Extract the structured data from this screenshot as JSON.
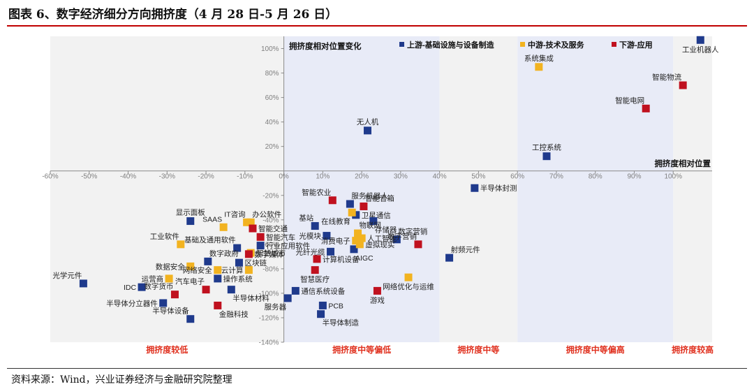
{
  "figure": {
    "title": "图表 6、数字经济细分方向拥挤度（4 月 28 日-5 月 26 日）",
    "source": "资料来源：Wind，兴业证券经济与金融研究院整理"
  },
  "colors": {
    "upstream": "#1f3a8c",
    "midstream": "#f2b320",
    "downstream": "#c0111f",
    "zone_gray": "#f2f2f2",
    "zone_blue": "#e8ebf7",
    "zone_label": "#e0301e"
  },
  "chart_data": {
    "type": "scatter",
    "xlim": [
      -0.6,
      1.1
    ],
    "ylim": [
      -1.4,
      1.1
    ],
    "x_ticks": [
      -0.6,
      -0.5,
      -0.4,
      -0.3,
      -0.2,
      -0.1,
      0,
      0.1,
      0.2,
      0.3,
      0.4,
      0.5,
      0.6,
      0.7,
      0.8,
      0.9,
      1.0
    ],
    "x_tick_labels": [
      "-60%",
      "-50%",
      "-40%",
      "-30%",
      "-20%",
      "-10%",
      "0%",
      "10%",
      "20%",
      "30%",
      "40%",
      "50%",
      "60%",
      "70%",
      "80%",
      "90%",
      "100%"
    ],
    "y_ticks": [
      -1.4,
      -1.2,
      -1.0,
      -0.8,
      -0.6,
      -0.4,
      -0.2,
      0.2,
      0.4,
      0.6,
      0.8,
      1.0
    ],
    "y_tick_labels": [
      "-140%",
      "-120%",
      "-100%",
      "-80%",
      "-60%",
      "-40%",
      "-20%",
      "20%",
      "40%",
      "60%",
      "80%",
      "100%"
    ],
    "grid": false,
    "legend": {
      "placement": "top",
      "title": "拥挤度相对位置变化",
      "entries": [
        {
          "key": "upstream",
          "label": "上游-基础设施与设备制造"
        },
        {
          "key": "midstream",
          "label": "中游-技术及服务"
        },
        {
          "key": "downstream",
          "label": "下游-应用"
        }
      ]
    },
    "x_axis_annotation": "拥挤度相对位置",
    "zones": [
      {
        "from": -0.6,
        "to": 0.0,
        "shade": "gray",
        "label": "拥挤度较低"
      },
      {
        "from": 0.0,
        "to": 0.4,
        "shade": "blue",
        "label": "拥挤度中等偏低"
      },
      {
        "from": 0.4,
        "to": 0.6,
        "shade": "gray",
        "label": "拥挤度中等"
      },
      {
        "from": 0.6,
        "to": 1.0,
        "shade": "blue",
        "label": "拥挤度中等偏高"
      },
      {
        "from": 1.0,
        "to": 1.1,
        "shade": "gray",
        "label": "拥挤度较高"
      }
    ],
    "series": [
      {
        "key": "upstream",
        "name": "上游-基础设施与设备制造",
        "points": [
          {
            "label": "工业机器人",
            "x": 1.07,
            "y": 1.07,
            "anchor": "below"
          },
          {
            "label": "工控系统",
            "x": 0.675,
            "y": 0.12,
            "anchor": "above"
          },
          {
            "label": "无人机",
            "x": 0.215,
            "y": 0.33,
            "anchor": "above"
          },
          {
            "label": "半导体封测",
            "x": 0.49,
            "y": -0.14,
            "anchor": "right"
          },
          {
            "label": "服务机器人",
            "x": 0.17,
            "y": -0.27,
            "anchor": "above-right"
          },
          {
            "label": "卫星通信",
            "x": 0.185,
            "y": -0.36,
            "anchor": "right"
          },
          {
            "label": "基站",
            "x": 0.08,
            "y": -0.45,
            "anchor": "above-left"
          },
          {
            "label": "光模块",
            "x": 0.11,
            "y": -0.53,
            "anchor": "left"
          },
          {
            "label": "存储器",
            "x": 0.23,
            "y": -0.41,
            "anchor": "below-right"
          },
          {
            "label": "数字营销",
            "x": 0.29,
            "y": -0.56,
            "anchor": "above-right"
          },
          {
            "label": "AIGC",
            "x": 0.18,
            "y": -0.64,
            "anchor": "below-right"
          },
          {
            "label": "光纤光缆",
            "x": 0.12,
            "y": -0.66,
            "anchor": "left"
          },
          {
            "label": "射频元件",
            "x": 0.425,
            "y": -0.71,
            "anchor": "above-right"
          },
          {
            "label": "通信系统设备",
            "x": 0.03,
            "y": -0.98,
            "anchor": "right"
          },
          {
            "label": "PCB",
            "x": 0.1,
            "y": -1.1,
            "anchor": "right"
          },
          {
            "label": "服务器",
            "x": 0.01,
            "y": -1.04,
            "anchor": "below-left"
          },
          {
            "label": "半导体制造",
            "x": 0.095,
            "y": -1.17,
            "anchor": "below-right"
          },
          {
            "label": "显示面板",
            "x": -0.24,
            "y": -0.41,
            "anchor": "above"
          },
          {
            "label": "基础及通用软件",
            "x": -0.12,
            "y": -0.63,
            "anchor": "above-left"
          },
          {
            "label": "行业应用软件",
            "x": -0.06,
            "y": -0.61,
            "anchor": "right"
          },
          {
            "label": "数字政府",
            "x": -0.195,
            "y": -0.74,
            "anchor": "above-right"
          },
          {
            "label": "区块链",
            "x": -0.115,
            "y": -0.75,
            "anchor": "right"
          },
          {
            "label": "操作系统",
            "x": -0.17,
            "y": -0.88,
            "anchor": "right"
          },
          {
            "label": "光学元件",
            "x": -0.515,
            "y": -0.92,
            "anchor": "above-left"
          },
          {
            "label": "IDC",
            "x": -0.365,
            "y": -0.95,
            "anchor": "left"
          },
          {
            "label": "半导体材料",
            "x": -0.135,
            "y": -0.97,
            "anchor": "below-right"
          },
          {
            "label": "半导体分立器件",
            "x": -0.31,
            "y": -1.08,
            "anchor": "left"
          },
          {
            "label": "半导体设备",
            "x": -0.24,
            "y": -1.21,
            "anchor": "above-left"
          }
        ]
      },
      {
        "key": "midstream",
        "name": "中游-技术及服务",
        "points": [
          {
            "label": "系统集成",
            "x": 0.655,
            "y": 0.85,
            "anchor": "above"
          },
          {
            "label": "在线教育",
            "x": 0.175,
            "y": -0.34,
            "anchor": "below-left"
          },
          {
            "label": "物联网",
            "x": 0.19,
            "y": -0.51,
            "anchor": "above-right"
          },
          {
            "label": "人工智能",
            "x": 0.2,
            "y": -0.55,
            "anchor": "right"
          },
          {
            "label": "虚拟现实",
            "x": 0.195,
            "y": -0.6,
            "anchor": "right"
          },
          {
            "label": "消费电子",
            "x": 0.185,
            "y": -0.57,
            "anchor": "left"
          },
          {
            "label": "网络优化与运维",
            "x": 0.32,
            "y": -0.87,
            "anchor": "below"
          },
          {
            "label": "SAAS",
            "x": -0.155,
            "y": -0.46,
            "anchor": "above-left"
          },
          {
            "label": "IT咨询",
            "x": -0.095,
            "y": -0.42,
            "anchor": "above-left"
          },
          {
            "label": "办公软件",
            "x": -0.085,
            "y": -0.42,
            "anchor": "above-right"
          },
          {
            "label": "工业软件",
            "x": -0.265,
            "y": -0.6,
            "anchor": "above-left"
          },
          {
            "label": "数据安全",
            "x": -0.24,
            "y": -0.78,
            "anchor": "left"
          },
          {
            "label": "运营商",
            "x": -0.295,
            "y": -0.88,
            "anchor": "left"
          },
          {
            "label": "网络安全",
            "x": -0.17,
            "y": -0.81,
            "anchor": "left"
          },
          {
            "label": "云计算",
            "x": -0.09,
            "y": -0.81,
            "anchor": "left"
          },
          {
            "label": "智慧城市",
            "x": -0.085,
            "y": -0.67,
            "anchor": "right"
          }
        ]
      },
      {
        "key": "downstream",
        "name": "下游-应用",
        "points": [
          {
            "label": "智能物流",
            "x": 1.025,
            "y": 0.7,
            "anchor": "above-left"
          },
          {
            "label": "智能电网",
            "x": 0.93,
            "y": 0.51,
            "anchor": "above-left"
          },
          {
            "label": "智能农业",
            "x": 0.125,
            "y": -0.24,
            "anchor": "above-left"
          },
          {
            "label": "智能音箱",
            "x": 0.205,
            "y": -0.29,
            "anchor": "above-right"
          },
          {
            "label": "数字营销",
            "x": 0.345,
            "y": -0.6,
            "anchor": "above-left"
          },
          {
            "label": "计算机设备",
            "x": 0.085,
            "y": -0.72,
            "anchor": "right"
          },
          {
            "label": "智慧医疗",
            "x": 0.08,
            "y": -0.81,
            "anchor": "below"
          },
          {
            "label": "游戏",
            "x": 0.24,
            "y": -0.98,
            "anchor": "below"
          },
          {
            "label": "智能交通",
            "x": -0.08,
            "y": -0.47,
            "anchor": "right"
          },
          {
            "label": "智能汽车",
            "x": -0.06,
            "y": -0.54,
            "anchor": "right"
          },
          {
            "label": "数字媒体",
            "x": -0.09,
            "y": -0.68,
            "anchor": "right"
          },
          {
            "label": "数字货币",
            "x": -0.28,
            "y": -1.01,
            "anchor": "above-left"
          },
          {
            "label": "汽车电子",
            "x": -0.2,
            "y": -0.97,
            "anchor": "above-left"
          },
          {
            "label": "金融科技",
            "x": -0.17,
            "y": -1.1,
            "anchor": "below-right"
          }
        ]
      }
    ]
  }
}
